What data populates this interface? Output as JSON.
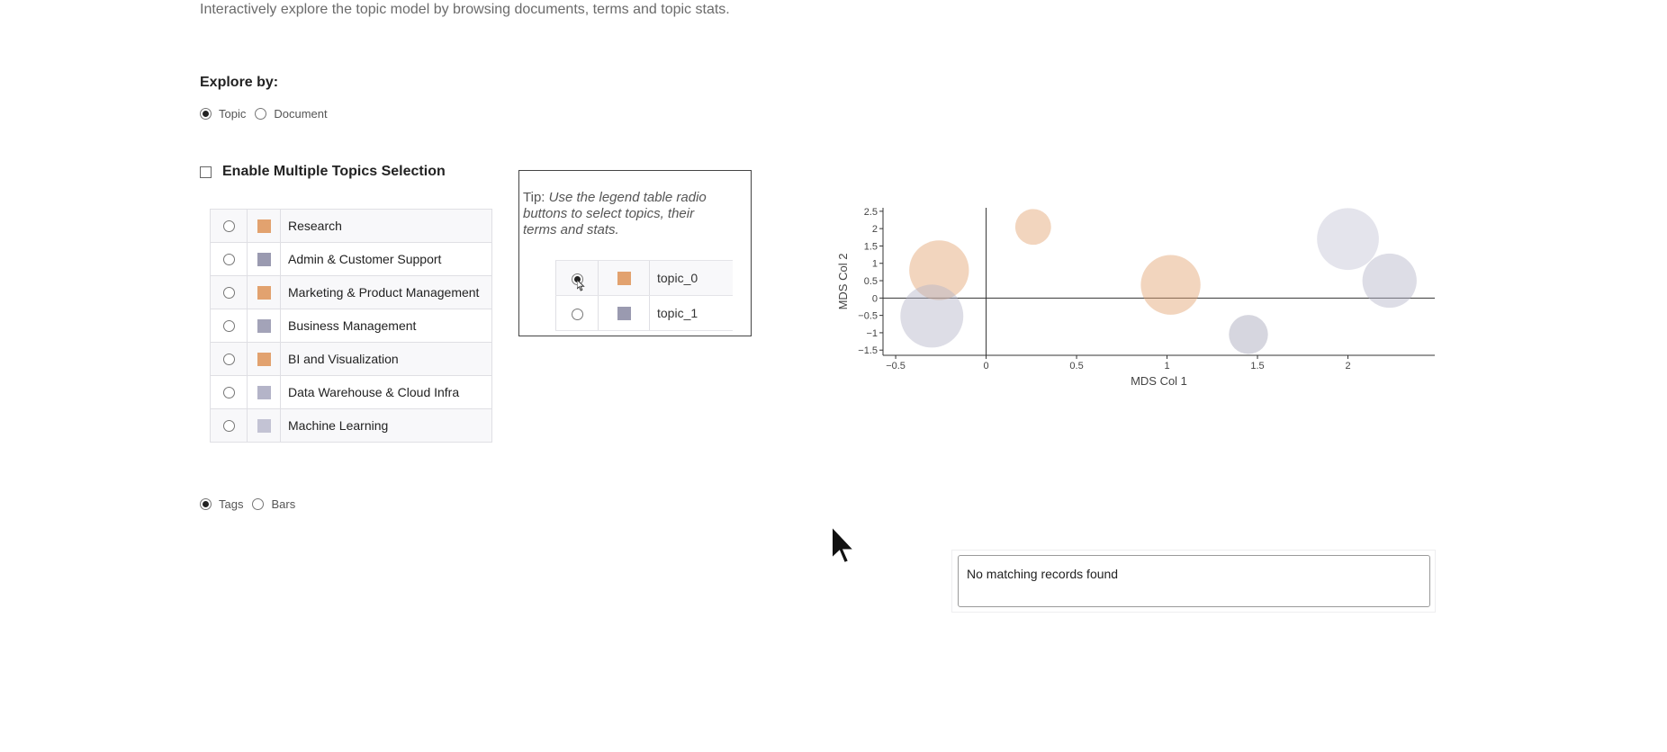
{
  "header": {
    "subtitle": "Interactively explore the topic model by browsing documents, terms and topic stats."
  },
  "explore": {
    "label": "Explore by:",
    "options": [
      {
        "label": "Topic",
        "checked": true
      },
      {
        "label": "Document",
        "checked": false
      }
    ]
  },
  "multi_select": {
    "label": "Enable Multiple Topics Selection",
    "checked": false
  },
  "topics": [
    {
      "label": "Research",
      "color": "#e2a26f"
    },
    {
      "label": "Admin & Customer Support",
      "color": "#9a9ab0"
    },
    {
      "label": "Marketing & Product Management",
      "color": "#e2a26f"
    },
    {
      "label": "Business Management",
      "color": "#a3a3b8"
    },
    {
      "label": "BI and Visualization",
      "color": "#e2a26f"
    },
    {
      "label": "Data Warehouse & Cloud Infra",
      "color": "#b4b4c8"
    },
    {
      "label": "Machine Learning",
      "color": "#c3c3d4"
    }
  ],
  "view_mode": {
    "options": [
      {
        "label": "Tags",
        "checked": true
      },
      {
        "label": "Bars",
        "checked": false
      }
    ]
  },
  "tip": {
    "prefix": "Tip:",
    "text": "Use the legend table radio buttons to select topics, their terms and stats.",
    "rows": [
      {
        "label": "topic_0",
        "color": "#e2a26f",
        "checked": true
      },
      {
        "label": "topic_1",
        "color": "#9a9ab0",
        "checked": false
      }
    ]
  },
  "chart_data": {
    "type": "scatter",
    "xlabel": "MDS Col 1",
    "ylabel": "MDS Col 2",
    "xticks": [
      -0.5,
      0,
      0.5,
      1,
      1.5,
      2
    ],
    "xtick_labels": [
      "−0.5",
      "0",
      "0.5",
      "1",
      "1.5",
      "2"
    ],
    "yticks": [
      -1.5,
      -1,
      -0.5,
      0,
      0.5,
      1,
      1.5,
      2,
      2.5
    ],
    "ytick_labels": [
      "−1.5",
      "−1",
      "−0.5",
      "0",
      "0.5",
      "1",
      "1.5",
      "2",
      "2.5"
    ],
    "xlim": [
      -0.57,
      2.48
    ],
    "ylim": [
      -1.65,
      2.6
    ],
    "grid": false,
    "points": [
      {
        "x": 0.26,
        "y": 2.05,
        "r": 0.33,
        "color": "#e2a26f"
      },
      {
        "x": -0.26,
        "y": 0.8,
        "r": 0.55,
        "color": "#e2a26f"
      },
      {
        "x": -0.3,
        "y": -0.52,
        "r": 0.58,
        "color": "#b4b4c8"
      },
      {
        "x": 1.02,
        "y": 0.38,
        "r": 0.55,
        "color": "#e2a26f"
      },
      {
        "x": 2.0,
        "y": 1.7,
        "r": 0.57,
        "color": "#c3c3d4"
      },
      {
        "x": 2.23,
        "y": 0.5,
        "r": 0.5,
        "color": "#b4b4c8"
      },
      {
        "x": 1.45,
        "y": -1.05,
        "r": 0.36,
        "color": "#a3a3b8"
      }
    ]
  },
  "records": {
    "empty_text": "No matching records found"
  }
}
